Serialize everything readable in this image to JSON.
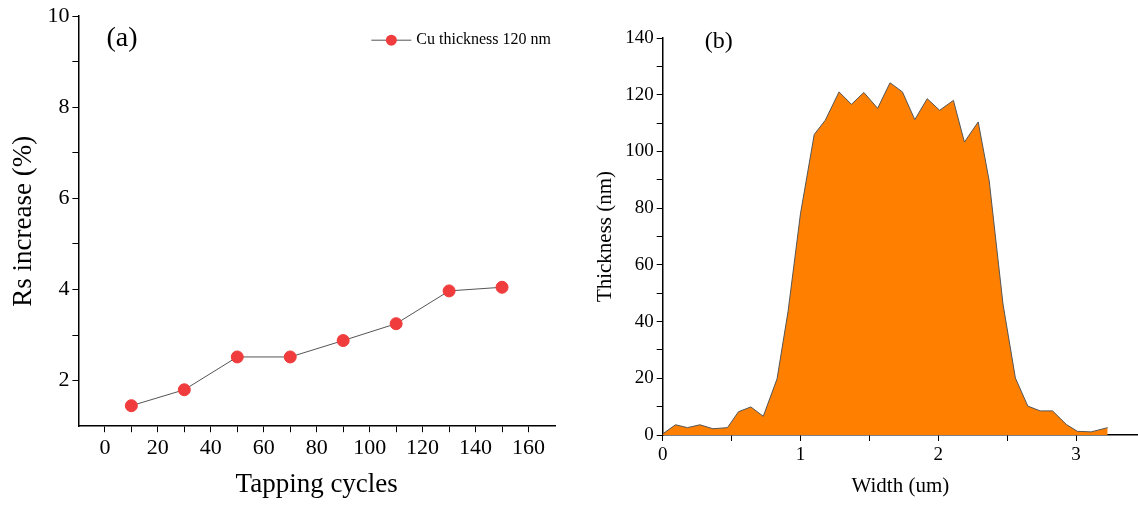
{
  "chart_data": [
    {
      "type": "line",
      "title": "(a)",
      "xlabel": "Tapping cycles",
      "ylabel": "Rs increase (%)",
      "x": [
        10,
        30,
        50,
        70,
        90,
        110,
        130,
        150
      ],
      "series": [
        {
          "name": "Cu thickness 120 nm",
          "color": "#f03c3c",
          "values": [
            1.45,
            1.8,
            2.52,
            2.52,
            2.88,
            3.25,
            3.97,
            4.05
          ]
        }
      ],
      "xlim": [
        -10,
        170
      ],
      "xticks": [
        0,
        {
          "value": 10,
          "label": null
        },
        20,
        {
          "value": 30,
          "label": null
        },
        40,
        {
          "value": 50,
          "label": null
        },
        60,
        {
          "value": 70,
          "label": null
        },
        80,
        {
          "value": 90,
          "label": null
        },
        100,
        {
          "value": 110,
          "label": null
        },
        120,
        {
          "value": 130,
          "label": null
        },
        140,
        {
          "value": 150,
          "label": null
        },
        160
      ],
      "ylim": [
        1,
        10
      ],
      "yticks": [
        2,
        {
          "value": 3,
          "label": null
        },
        4,
        {
          "value": 5,
          "label": null
        },
        6,
        {
          "value": 7,
          "label": null
        },
        8,
        {
          "value": 9,
          "label": null
        },
        10
      ],
      "grid": false,
      "legend": "top right",
      "marker": "circle",
      "line_style": "solid"
    },
    {
      "type": "area",
      "title": "(b)",
      "xlabel": "Width (um)",
      "ylabel": "Thickness (nm)",
      "x": [
        0,
        0.093,
        0.18,
        0.27,
        0.365,
        0.47,
        0.55,
        0.64,
        0.73,
        0.83,
        0.91,
        1.0,
        1.1,
        1.18,
        1.28,
        1.37,
        1.46,
        1.56,
        1.65,
        1.74,
        1.83,
        1.92,
        2.01,
        2.11,
        2.19,
        2.29,
        2.37,
        2.47,
        2.56,
        2.65,
        2.74,
        2.83,
        2.93,
        3.01,
        3.11,
        3.23
      ],
      "series": [
        {
          "color": "#ff8000",
          "values": [
            0.4,
            3.6,
            2.6,
            3.6,
            2.2,
            2.6,
            8.2,
            9.9,
            6.6,
            19.8,
            43.6,
            78,
            106,
            111,
            121,
            116.6,
            120.8,
            115.2,
            124.2,
            121,
            111.2,
            118.6,
            114.5,
            118,
            103.3,
            110.4,
            89.6,
            46.2,
            20.1,
            10.2,
            8.5,
            8.5,
            3.7,
            1.3,
            1.1,
            2.6
          ]
        }
      ],
      "xlim": [
        0,
        3.45
      ],
      "xticks": [
        0,
        {
          "value": 0.5,
          "label": null
        },
        1,
        {
          "value": 1.5,
          "label": null
        },
        2,
        {
          "value": 2.5,
          "label": null
        },
        3
      ],
      "ylim": [
        0,
        140
      ],
      "yticks": [
        0,
        {
          "value": 10,
          "label": null
        },
        20,
        {
          "value": 30,
          "label": null
        },
        40,
        {
          "value": 50,
          "label": null
        },
        60,
        {
          "value": 70,
          "label": null
        },
        80,
        {
          "value": 90,
          "label": null
        },
        100,
        {
          "value": 110,
          "label": null
        },
        120,
        {
          "value": 130,
          "label": null
        },
        140
      ],
      "grid": false
    }
  ]
}
